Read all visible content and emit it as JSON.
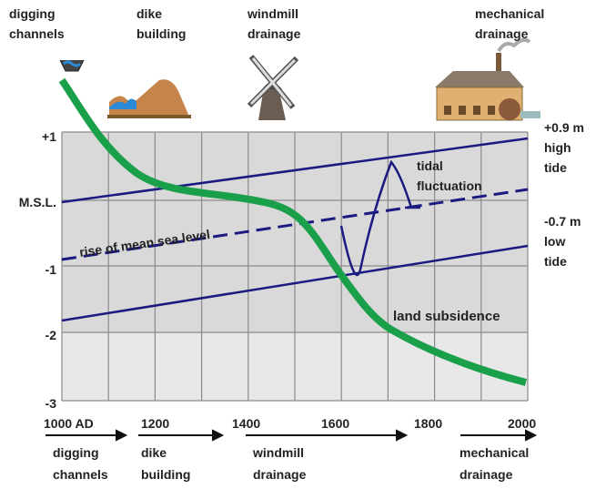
{
  "top_labels": [
    [
      "digging",
      "channels"
    ],
    [
      "dike",
      "building"
    ],
    [
      "windmill",
      "drainage"
    ],
    [
      "mechanical",
      "drainage"
    ]
  ],
  "y_labels": [
    "+1",
    "M.S.L.",
    "-1",
    "-2",
    "-3"
  ],
  "right_labels": {
    "high": [
      "+0.9 m",
      "high",
      "tide"
    ],
    "low": [
      "-0.7 m",
      "low",
      "tide"
    ]
  },
  "annotations": {
    "tidal": [
      "tidal",
      "fluctuation"
    ],
    "sea_level": "rise of mean sea level",
    "subsidence": "land subsidence"
  },
  "x_labels": [
    "1000 AD",
    "1200",
    "1400",
    "1600",
    "1800",
    "2000"
  ],
  "bottom_labels": [
    [
      "digging",
      "channels"
    ],
    [
      "dike",
      "building"
    ],
    [
      "windmill",
      "drainage"
    ],
    [
      "mechanical",
      "drainage"
    ]
  ]
}
